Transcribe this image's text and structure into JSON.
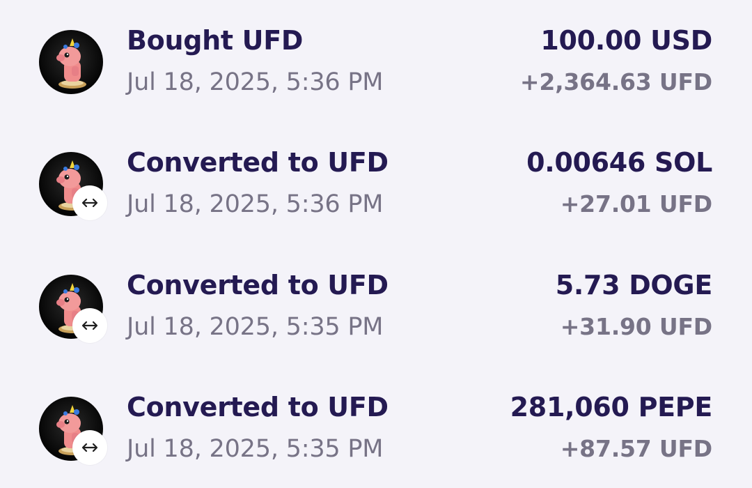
{
  "transactions": [
    {
      "title": "Bought UFD",
      "date": "Jul 18, 2025, 5:36 PM",
      "amount": "100.00 USD",
      "received": "+2,364.63 UFD",
      "badge": null
    },
    {
      "title": "Converted to UFD",
      "date": "Jul 18, 2025, 5:36 PM",
      "amount": "0.00646 SOL",
      "received": "+27.01 UFD",
      "badge": "↔"
    },
    {
      "title": "Converted to UFD",
      "date": "Jul 18, 2025, 5:35 PM",
      "amount": "5.73 DOGE",
      "received": "+31.90 UFD",
      "badge": "↔"
    },
    {
      "title": "Converted to UFD",
      "date": "Jul 18, 2025, 5:35 PM",
      "amount": "281,060 PEPE",
      "received": "+87.57 UFD",
      "badge": "↔"
    }
  ],
  "icons": {
    "avatar": "ufd-token-avatar-icon",
    "swap": "swap-arrows-icon"
  },
  "colors": {
    "background": "#f4f3f9",
    "primary_text": "#241a52",
    "secondary_text": "#777386",
    "avatar_bg": "#050505",
    "mascot": "#f08c8c",
    "badge_bg": "#ffffff"
  }
}
